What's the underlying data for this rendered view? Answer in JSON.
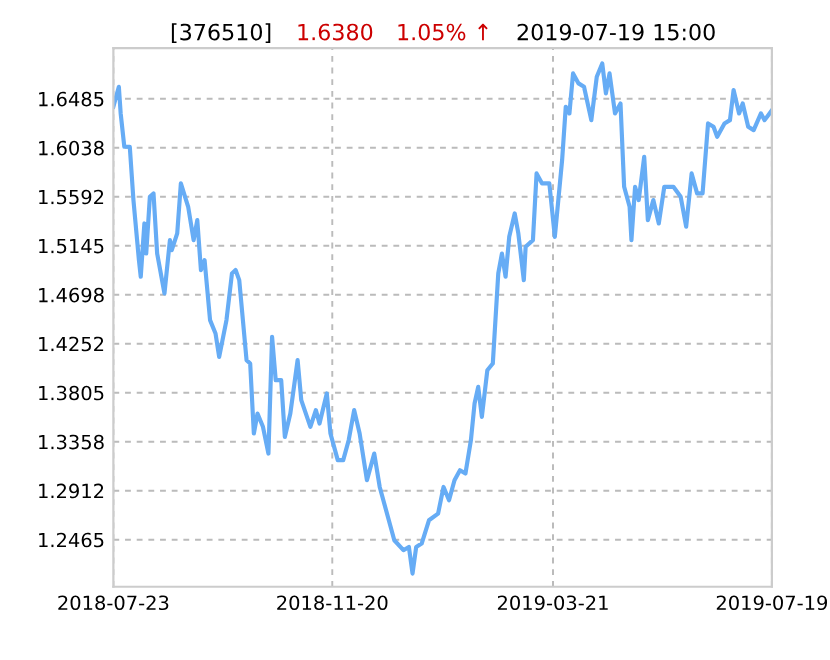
{
  "chart_data": {
    "type": "line",
    "title": "[376510]",
    "annotations": [
      "1.6380",
      "1.05% ↑",
      "2019-07-19 15:00"
    ],
    "x": [
      "2018-07-23",
      "2018-07-26",
      "2018-07-27",
      "2018-07-29",
      "2018-08-01",
      "2018-08-03",
      "2018-08-06",
      "2018-08-07",
      "2018-08-09",
      "2018-08-10",
      "2018-08-12",
      "2018-08-14",
      "2018-08-16",
      "2018-08-20",
      "2018-08-23",
      "2018-08-24",
      "2018-08-27",
      "2018-08-29",
      "2018-09-02",
      "2018-09-05",
      "2018-09-07",
      "2018-09-09",
      "2018-09-11",
      "2018-09-14",
      "2018-09-17",
      "2018-09-19",
      "2018-09-23",
      "2018-09-26",
      "2018-09-28",
      "2018-09-30",
      "2018-10-04",
      "2018-10-06",
      "2018-10-08",
      "2018-10-10",
      "2018-10-13",
      "2018-10-16",
      "2018-10-18",
      "2018-10-20",
      "2018-10-23",
      "2018-10-25",
      "2018-10-28",
      "2018-11-01",
      "2018-11-03",
      "2018-11-08",
      "2018-11-11",
      "2018-11-13",
      "2018-11-17",
      "2018-11-19",
      "2018-11-23",
      "2018-11-26",
      "2018-11-29",
      "2018-12-02",
      "2018-12-05",
      "2018-12-09",
      "2018-12-13",
      "2018-12-16",
      "2018-12-21",
      "2018-12-24",
      "2018-12-29",
      "2019-01-01",
      "2019-01-03",
      "2019-01-05",
      "2019-01-08",
      "2019-01-12",
      "2019-01-17",
      "2019-01-20",
      "2019-01-23",
      "2019-01-26",
      "2019-01-29",
      "2019-02-01",
      "2019-02-04",
      "2019-02-06",
      "2019-02-08",
      "2019-02-10",
      "2019-02-13",
      "2019-02-16",
      "2019-02-19",
      "2019-02-21",
      "2019-02-23",
      "2019-02-25",
      "2019-02-28",
      "2019-03-02",
      "2019-03-05",
      "2019-03-06",
      "2019-03-10",
      "2019-03-12",
      "2019-03-15",
      "2019-03-19",
      "2019-03-22",
      "2019-03-26",
      "2019-03-28",
      "2019-03-30",
      "2019-04-01",
      "2019-04-04",
      "2019-04-07",
      "2019-04-11",
      "2019-04-14",
      "2019-04-17",
      "2019-04-19",
      "2019-04-21",
      "2019-04-24",
      "2019-04-27",
      "2019-04-29",
      "2019-05-02",
      "2019-05-03",
      "2019-05-05",
      "2019-05-07",
      "2019-05-10",
      "2019-05-12",
      "2019-05-15",
      "2019-05-18",
      "2019-05-21",
      "2019-05-26",
      "2019-05-30",
      "2019-06-02",
      "2019-06-05",
      "2019-06-08",
      "2019-06-11",
      "2019-06-14",
      "2019-06-17",
      "2019-06-19",
      "2019-06-23",
      "2019-06-26",
      "2019-06-28",
      "2019-07-01",
      "2019-07-03",
      "2019-07-06",
      "2019-07-09",
      "2019-07-13",
      "2019-07-15",
      "2019-07-19"
    ],
    "series": [
      {
        "color": "#66acf5",
        "values": [
          1.6412,
          1.6594,
          1.6351,
          1.6047,
          1.6047,
          1.5561,
          1.5014,
          1.4862,
          1.5348,
          1.5074,
          1.5591,
          1.5622,
          1.5074,
          1.471,
          1.5196,
          1.5105,
          1.5257,
          1.5713,
          1.55,
          1.5196,
          1.5378,
          1.4923,
          1.5014,
          1.4467,
          1.4345,
          1.4132,
          1.4467,
          1.4892,
          1.4923,
          1.4831,
          1.4102,
          1.4071,
          1.3433,
          1.3615,
          1.3494,
          1.325,
          1.4314,
          1.3919,
          1.3919,
          1.3402,
          1.3615,
          1.4102,
          1.3737,
          1.3494,
          1.3646,
          1.3524,
          1.3798,
          1.3433,
          1.319,
          1.319,
          1.3372,
          1.3646,
          1.3433,
          1.3007,
          1.325,
          1.2946,
          1.2642,
          1.246,
          1.2369,
          1.2399,
          1.2156,
          1.2399,
          1.243,
          1.2642,
          1.2703,
          1.2946,
          1.2824,
          1.3007,
          1.3098,
          1.3068,
          1.3372,
          1.3707,
          1.3858,
          1.3585,
          1.401,
          1.4071,
          1.4892,
          1.5074,
          1.4862,
          1.5226,
          1.5439,
          1.5257,
          1.4831,
          1.5135,
          1.5196,
          1.5804,
          1.5713,
          1.5713,
          1.5226,
          1.5926,
          1.6412,
          1.6351,
          1.6716,
          1.6625,
          1.6594,
          1.629,
          1.6686,
          1.6807,
          1.6534,
          1.6716,
          1.6351,
          1.6442,
          1.5682,
          1.55,
          1.5196,
          1.5682,
          1.5561,
          1.5956,
          1.5378,
          1.5561,
          1.5348,
          1.5682,
          1.5682,
          1.5591,
          1.5318,
          1.5804,
          1.5622,
          1.5622,
          1.626,
          1.623,
          1.6138,
          1.626,
          1.629,
          1.6564,
          1.6351,
          1.6442,
          1.623,
          1.6199,
          1.6351,
          1.629,
          1.638
        ]
      }
    ],
    "xlim": [
      "2018-07-23",
      "2019-07-19"
    ],
    "xticks": [
      "2018-07-23",
      "2018-11-20",
      "2019-03-21",
      "2019-07-19"
    ],
    "ylim": [
      1.2036,
      1.6946
    ],
    "yticks": [
      1.6485,
      1.6038,
      1.5592,
      1.5145,
      1.4698,
      1.4252,
      1.3805,
      1.3358,
      1.2912,
      1.2465
    ],
    "grid": true,
    "legend": false,
    "marker": "none",
    "line_style": "solid"
  }
}
